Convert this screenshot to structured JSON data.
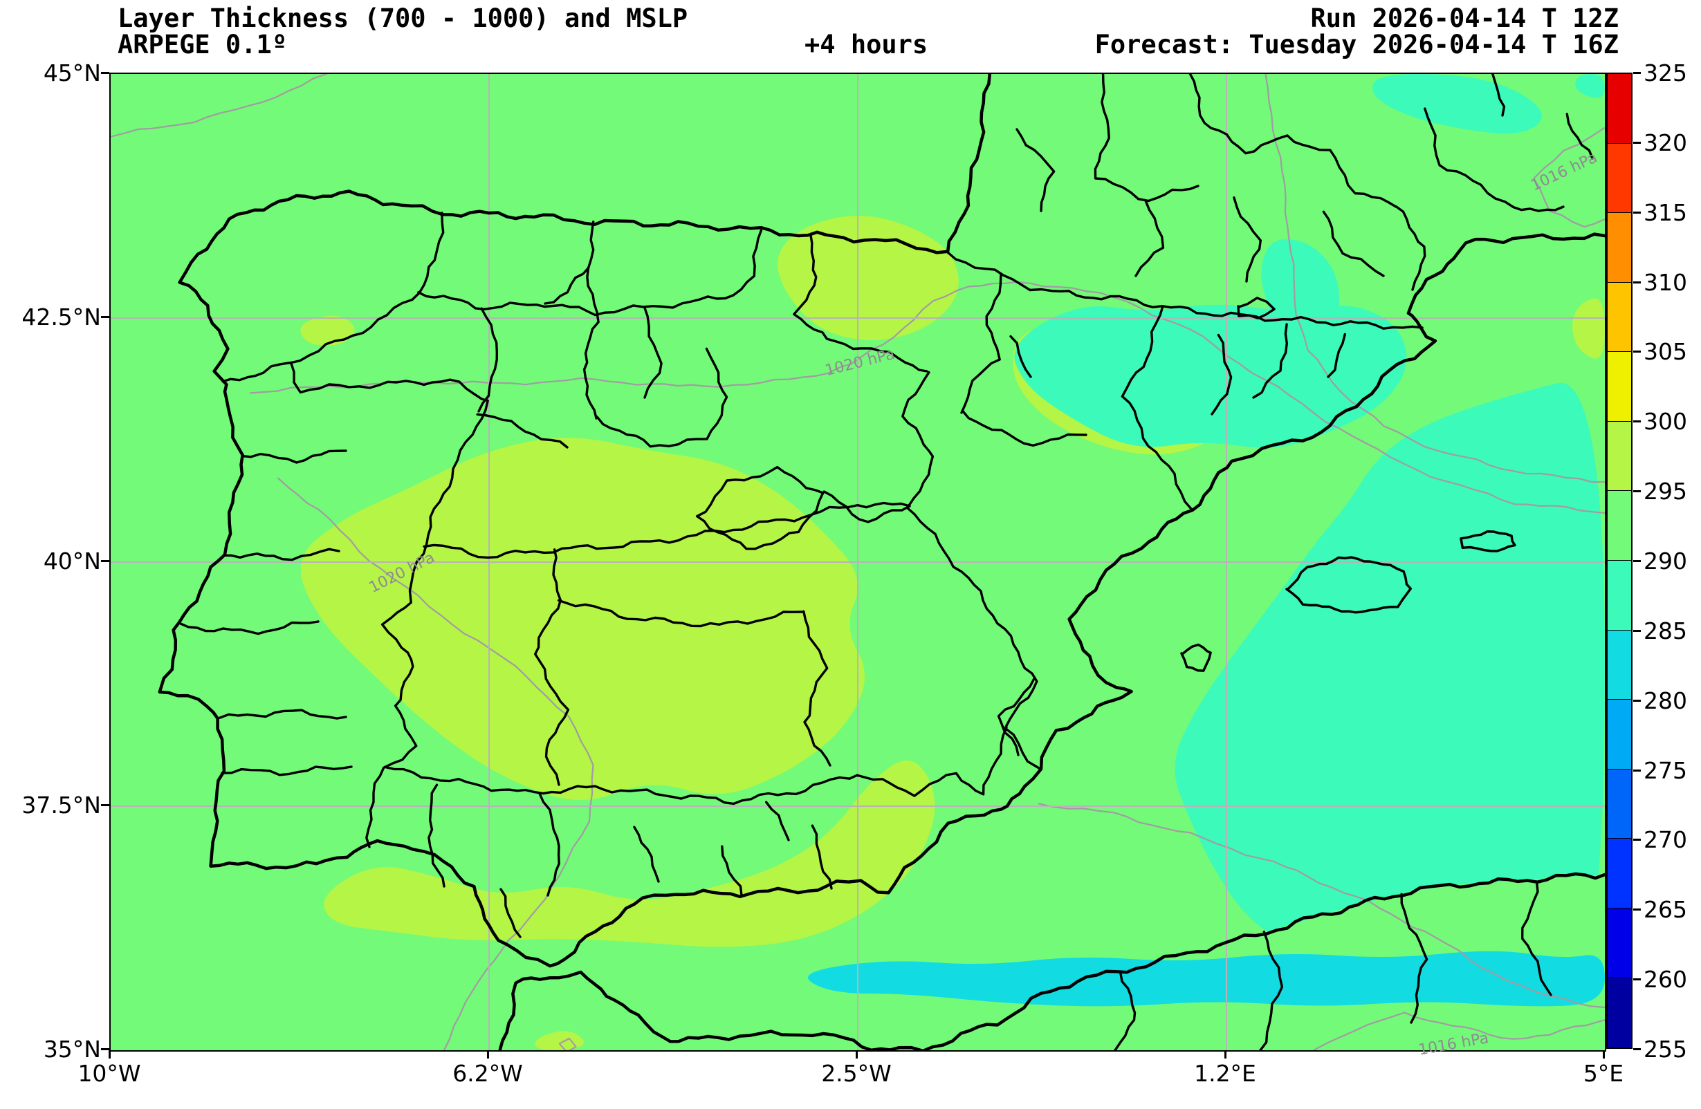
{
  "header": {
    "title_line1": "Layer Thickness (700 - 1000) and MSLP",
    "title_line2": "ARPEGE 0.1º",
    "lead_time": "+4 hours",
    "run": "Run 2026-04-14 T 12Z",
    "forecast": "Forecast: Tuesday 2026-04-14 T 16Z"
  },
  "axes": {
    "y_ticks": [
      "45°N",
      "42.5°N",
      "40°N",
      "37.5°N",
      "35°N"
    ],
    "x_ticks": [
      "10°W",
      "6.2°W",
      "2.5°W",
      "1.2°E",
      "5°E"
    ]
  },
  "colorbar": {
    "labels": [
      "325",
      "320",
      "315",
      "310",
      "305",
      "300",
      "295",
      "290",
      "285",
      "280",
      "275",
      "270",
      "265",
      "260",
      "255"
    ],
    "colors": [
      "#E60000",
      "#FF3800",
      "#FF8E00",
      "#FFC400",
      "#EFEF00",
      "#B4F546",
      "#73FA78",
      "#3CFAB9",
      "#12DBE2",
      "#00AAF5",
      "#0066FA",
      "#0033FF",
      "#0000E8",
      "#0000A0"
    ]
  },
  "map": {
    "isobar_labels": [
      {
        "text": "1020 hPa"
      },
      {
        "text": "1020 hPa"
      },
      {
        "text": "1016 hPa"
      },
      {
        "text": "1016 hPa"
      }
    ],
    "palette": {
      "background_290_295": "#73FA78",
      "patch_295_300": "#B4F546",
      "patch_285_290": "#3CFAB9",
      "patch_280_285": "#12DBE2",
      "coast_border": "#000000",
      "isobar": "#A39BA3",
      "gridline": "#B9B2B9"
    }
  }
}
